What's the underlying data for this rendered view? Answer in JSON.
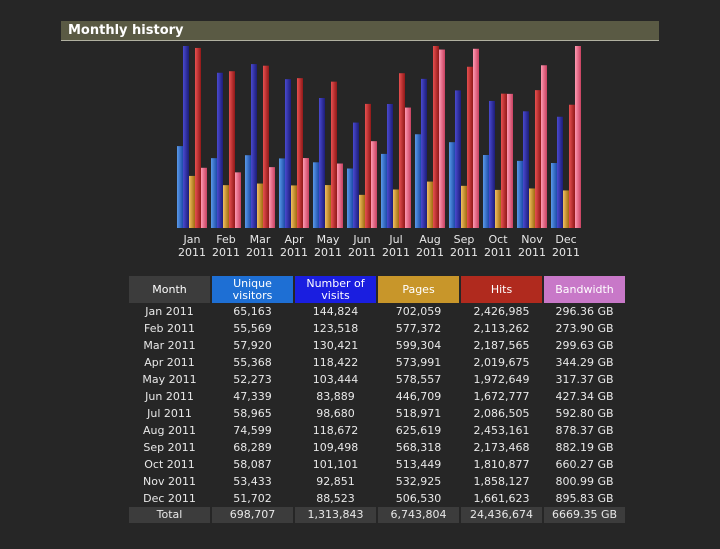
{
  "panel": {
    "title": "Monthly history"
  },
  "colors": {
    "unique_visitors": "#2a6fd6",
    "visits": "#2c2ca8",
    "pages": "#d49a2a",
    "hits": "#c83030",
    "bandwidth": "#f06a8a"
  },
  "table": {
    "headers": {
      "month": "Month",
      "unique_visitors": "Unique visitors",
      "visits": "Number of visits",
      "pages": "Pages",
      "hits": "Hits",
      "bandwidth": "Bandwidth"
    },
    "rows": [
      {
        "month": "Jan 2011",
        "uv": "65,163",
        "nv": "144,824",
        "pg": "702,059",
        "hit": "2,426,985",
        "bw": "296.36 GB"
      },
      {
        "month": "Feb 2011",
        "uv": "55,569",
        "nv": "123,518",
        "pg": "577,372",
        "hit": "2,113,262",
        "bw": "273.90 GB"
      },
      {
        "month": "Mar 2011",
        "uv": "57,920",
        "nv": "130,421",
        "pg": "599,304",
        "hit": "2,187,565",
        "bw": "299.63 GB"
      },
      {
        "month": "Apr 2011",
        "uv": "55,368",
        "nv": "118,422",
        "pg": "573,991",
        "hit": "2,019,675",
        "bw": "344.29 GB"
      },
      {
        "month": "May 2011",
        "uv": "52,273",
        "nv": "103,444",
        "pg": "578,557",
        "hit": "1,972,649",
        "bw": "317.37 GB"
      },
      {
        "month": "Jun 2011",
        "uv": "47,339",
        "nv": "83,889",
        "pg": "446,709",
        "hit": "1,672,777",
        "bw": "427.34 GB"
      },
      {
        "month": "Jul 2011",
        "uv": "58,965",
        "nv": "98,680",
        "pg": "518,971",
        "hit": "2,086,505",
        "bw": "592.80 GB"
      },
      {
        "month": "Aug 2011",
        "uv": "74,599",
        "nv": "118,672",
        "pg": "625,619",
        "hit": "2,453,161",
        "bw": "878.37 GB"
      },
      {
        "month": "Sep 2011",
        "uv": "68,289",
        "nv": "109,498",
        "pg": "568,318",
        "hit": "2,173,468",
        "bw": "882.19 GB"
      },
      {
        "month": "Oct 2011",
        "uv": "58,087",
        "nv": "101,101",
        "pg": "513,449",
        "hit": "1,810,877",
        "bw": "660.27 GB"
      },
      {
        "month": "Nov 2011",
        "uv": "53,433",
        "nv": "92,851",
        "pg": "532,925",
        "hit": "1,858,127",
        "bw": "800.99 GB"
      },
      {
        "month": "Dec 2011",
        "uv": "51,702",
        "nv": "88,523",
        "pg": "506,530",
        "hit": "1,661,623",
        "bw": "895.83 GB"
      }
    ],
    "total": {
      "month": "Total",
      "uv": "698,707",
      "nv": "1,313,843",
      "pg": "6,743,804",
      "hit": "24,436,674",
      "bw": "6669.35 GB"
    }
  },
  "chart_data": {
    "type": "bar",
    "categories": [
      "Jan 2011",
      "Feb 2011",
      "Mar 2011",
      "Apr 2011",
      "May 2011",
      "Jun 2011",
      "Jul 2011",
      "Aug 2011",
      "Sep 2011",
      "Oct 2011",
      "Nov 2011",
      "Dec 2011"
    ],
    "category_lines": [
      [
        "Jan",
        "2011"
      ],
      [
        "Feb",
        "2011"
      ],
      [
        "Mar",
        "2011"
      ],
      [
        "Apr",
        "2011"
      ],
      [
        "May",
        "2011"
      ],
      [
        "Jun",
        "2011"
      ],
      [
        "Jul",
        "2011"
      ],
      [
        "Aug",
        "2011"
      ],
      [
        "Sep",
        "2011"
      ],
      [
        "Oct",
        "2011"
      ],
      [
        "Nov",
        "2011"
      ],
      [
        "Dec",
        "2011"
      ]
    ],
    "series": [
      {
        "name": "Unique visitors",
        "color": "#2a6fd6",
        "values": [
          65163,
          55569,
          57920,
          55368,
          52273,
          47339,
          58965,
          74599,
          68289,
          58087,
          53433,
          51702
        ]
      },
      {
        "name": "Number of visits",
        "color": "#2c2ca8",
        "values": [
          144824,
          123518,
          130421,
          118422,
          103444,
          83889,
          98680,
          118672,
          109498,
          101101,
          92851,
          88523
        ]
      },
      {
        "name": "Pages",
        "color": "#d49a2a",
        "values": [
          702059,
          577372,
          599304,
          573991,
          578557,
          446709,
          518971,
          625619,
          568318,
          513449,
          532925,
          506530
        ]
      },
      {
        "name": "Hits",
        "color": "#c83030",
        "values": [
          2426985,
          2113262,
          2187565,
          2019675,
          1972649,
          1672777,
          2086505,
          2453161,
          2173468,
          1810877,
          1858127,
          1661623
        ]
      },
      {
        "name": "Bandwidth",
        "color": "#f06a8a",
        "values": [
          296.36,
          273.9,
          299.63,
          344.29,
          317.37,
          427.34,
          592.8,
          878.37,
          882.19,
          660.27,
          800.99,
          895.83
        ]
      }
    ],
    "groups": [
      {
        "series": [
          "Unique visitors",
          "Number of visits"
        ],
        "max": 144824
      },
      {
        "series": [
          "Pages",
          "Hits"
        ],
        "max": 2453161
      },
      {
        "series": [
          "Bandwidth"
        ],
        "max": 895.83
      }
    ],
    "grid": false,
    "legend": "table-below"
  }
}
